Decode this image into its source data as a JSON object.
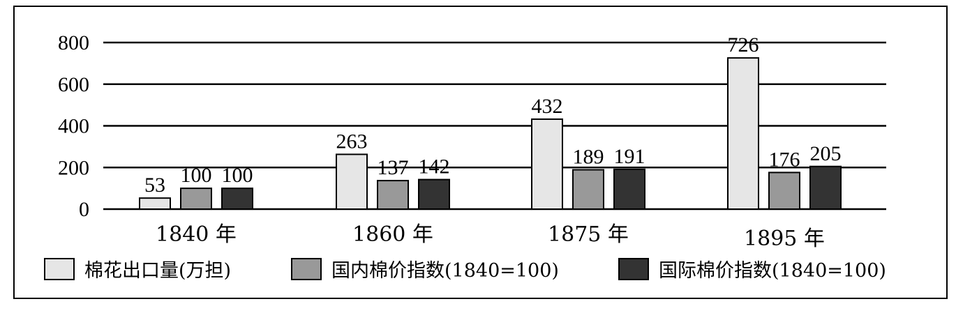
{
  "chart_data": {
    "type": "bar",
    "title": "",
    "xlabel": "",
    "ylabel": "",
    "categories": [
      "1840 年",
      "1860 年",
      "1875 年",
      "1895 年"
    ],
    "series": [
      {
        "name": "棉花出口量(万担)",
        "values": [
          53,
          263,
          432,
          726
        ],
        "color": "#e6e6e6"
      },
      {
        "name": "国内棉价指数(1840=100)",
        "values": [
          100,
          137,
          189,
          176
        ],
        "color": "#999999"
      },
      {
        "name": "国际棉价指数(1840=100)",
        "values": [
          100,
          142,
          191,
          205
        ],
        "color": "#333333"
      }
    ],
    "ylim": [
      0,
      800
    ],
    "yticks": [
      "0",
      "200",
      "400",
      "600",
      "800"
    ],
    "grid": true,
    "legend_position": "bottom",
    "data_labels": true
  }
}
